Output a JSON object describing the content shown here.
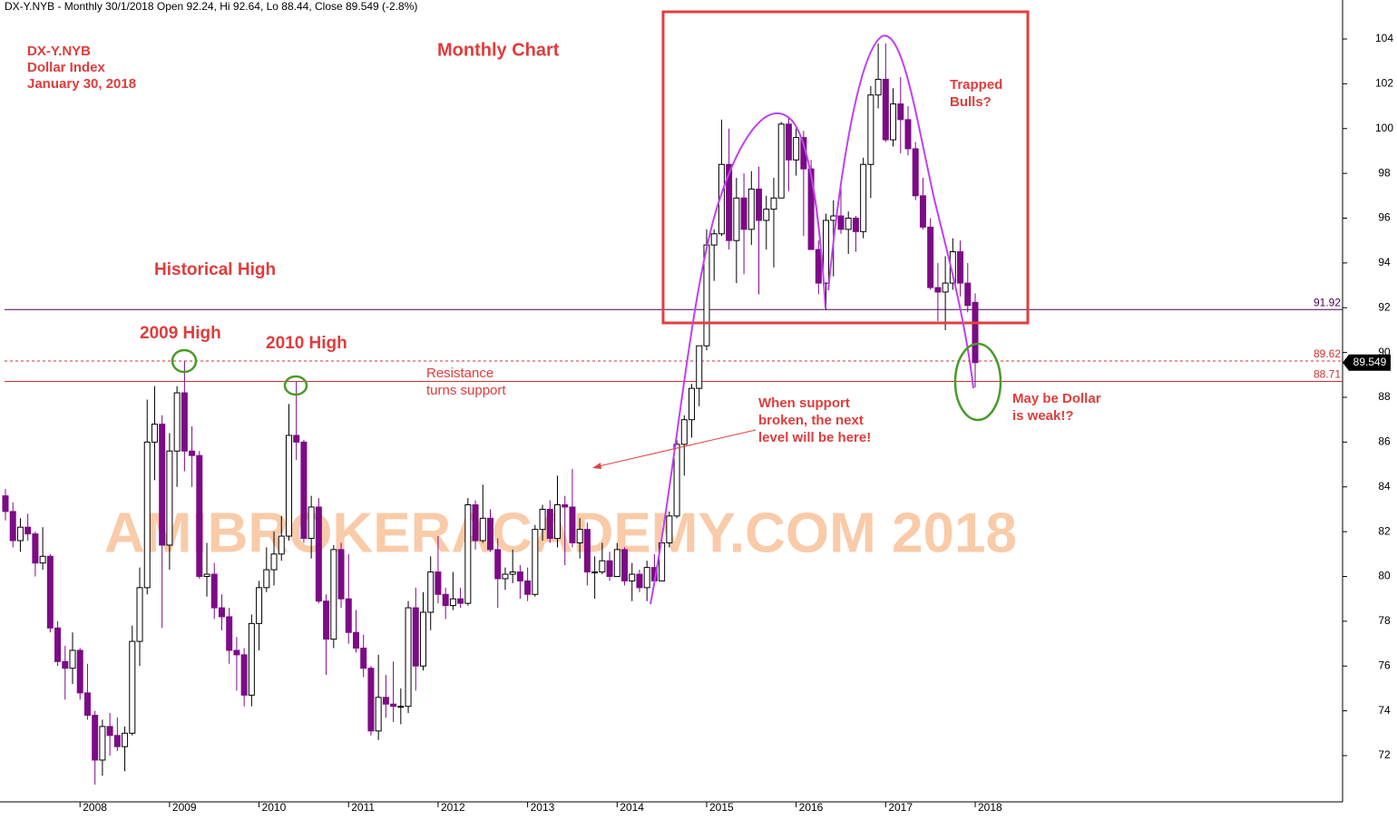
{
  "chart_data": {
    "type": "candlestick",
    "header": "DX-Y.NYB - Monthly 30/1/2018 Open 92.24, Hi 92.64, Lo 88.44, Close 89.549 (-2.8%)",
    "watermark": "AMIBROKERACADEMY.COM  2018",
    "annotations": [
      {
        "lines": [
          "DX-Y.NYB",
          "Dollar Index",
          "January 30, 2018"
        ]
      },
      {
        "lines": [
          "Monthly Chart"
        ]
      },
      {
        "lines": [
          "Historical High"
        ]
      },
      {
        "lines": [
          "2009 High"
        ]
      },
      {
        "lines": [
          "2010 High"
        ]
      },
      {
        "lines": [
          "Resistance",
          "turns support"
        ]
      },
      {
        "lines": [
          "When support",
          "broken, the next",
          "level will be here!"
        ]
      },
      {
        "lines": [
          "Trapped",
          "Bulls?"
        ]
      },
      {
        "lines": [
          "May be Dollar",
          "is weak!?"
        ]
      }
    ],
    "categories": [
      null,
      null,
      null,
      null,
      null,
      null,
      null,
      null,
      null,
      null,
      "2008",
      null,
      null,
      null,
      null,
      null,
      null,
      null,
      null,
      null,
      null,
      null,
      "2009",
      null,
      null,
      null,
      null,
      null,
      null,
      null,
      null,
      null,
      null,
      null,
      "2010",
      null,
      null,
      null,
      null,
      null,
      null,
      null,
      null,
      null,
      null,
      null,
      "2011",
      null,
      null,
      null,
      null,
      null,
      null,
      null,
      null,
      null,
      null,
      null,
      "2012",
      null,
      null,
      null,
      null,
      null,
      null,
      null,
      null,
      null,
      null,
      null,
      "2013",
      null,
      null,
      null,
      null,
      null,
      null,
      null,
      null,
      null,
      null,
      null,
      "2014",
      null,
      null,
      null,
      null,
      null,
      null,
      null,
      null,
      null,
      null,
      null,
      "2015",
      null,
      null,
      null,
      null,
      null,
      null,
      null,
      null,
      null,
      null,
      null,
      "2016",
      null,
      null,
      null,
      null,
      null,
      null,
      null,
      null,
      null,
      null,
      null,
      "2017",
      null,
      null,
      null,
      null,
      null,
      null,
      null,
      null,
      null,
      null,
      null,
      "2018"
    ],
    "open": [
      83.6,
      82.9,
      81.6,
      82.2,
      81.9,
      80.6,
      80.9,
      77.7,
      76.2,
      75.9,
      76.7,
      74.8,
      73.8,
      71.8,
      73.3,
      72.9,
      72.4,
      73.0,
      77.1,
      79.5,
      86.0,
      86.8,
      81.4,
      85.6,
      88.2,
      85.6,
      85.4,
      80.0,
      80.1,
      78.6,
      78.2,
      76.7,
      76.5,
      74.7,
      77.9,
      79.5,
      80.3,
      81.0,
      81.8,
      86.3,
      86.0,
      81.7,
      83.1,
      78.9,
      77.2,
      81.2,
      79.0,
      77.5,
      76.8,
      75.9,
      73.1,
      74.6,
      74.3,
      74.2,
      74.2,
      78.6,
      76.0,
      78.4,
      80.2,
      79.2,
      78.7,
      79.0,
      78.8,
      83.2,
      81.6,
      82.6,
      81.2,
      79.9,
      80.1,
      80.2,
      79.8,
      79.2,
      82.1,
      83.0,
      81.7,
      83.2,
      83.1,
      81.5,
      82.1,
      80.2,
      80.2,
      80.7,
      80.0,
      81.2,
      79.8,
      80.1,
      79.5,
      80.4,
      79.8,
      81.5,
      82.7,
      85.9,
      87.0,
      88.4,
      90.3,
      94.8,
      95.3,
      98.4,
      95.0,
      96.9,
      95.5,
      97.3,
      95.9,
      96.4,
      96.9,
      100.2,
      98.6,
      99.6,
      98.2,
      94.6,
      93.1,
      95.9,
      96.1,
      95.5,
      96.0,
      95.4,
      98.4,
      101.5,
      102.2,
      99.5,
      101.1,
      100.4,
      99.1,
      97.0,
      95.6,
      92.9,
      92.7,
      93.1,
      94.5,
      93.1,
      92.24
    ],
    "high": [
      83.9,
      83.3,
      82.6,
      82.8,
      82.0,
      82.2,
      81.0,
      78.0,
      76.9,
      77.5,
      76.8,
      76.1,
      74.0,
      73.6,
      73.9,
      73.7,
      73.3,
      77.8,
      80.4,
      87.9,
      88.5,
      87.2,
      86.4,
      88.5,
      89.62,
      86.7,
      85.6,
      81.5,
      80.6,
      79.2,
      78.6,
      77.3,
      76.8,
      78.3,
      79.8,
      81.3,
      82.0,
      82.7,
      87.7,
      88.71,
      86.1,
      83.6,
      83.5,
      79.2,
      81.4,
      81.5,
      81.0,
      78.5,
      77.4,
      76.0,
      76.5,
      75.6,
      76.2,
      75.0,
      78.9,
      79.5,
      79.3,
      80.9,
      81.8,
      79.5,
      80.2,
      79.5,
      83.5,
      83.4,
      84.1,
      83.0,
      81.7,
      80.4,
      81.2,
      80.5,
      80.4,
      82.3,
      83.2,
      83.4,
      84.5,
      83.6,
      84.8,
      82.6,
      82.4,
      80.9,
      81.5,
      81.1,
      81.5,
      81.3,
      80.6,
      80.3,
      80.7,
      81.0,
      81.6,
      82.9,
      86.1,
      87.2,
      88.6,
      90.3,
      95.5,
      95.5,
      100.4,
      100.0,
      97.8,
      98.0,
      98.1,
      98.3,
      97.0,
      97.8,
      100.3,
      100.5,
      100.0,
      99.9,
      98.6,
      95.0,
      96.2,
      96.8,
      97.6,
      96.3,
      96.1,
      98.7,
      101.9,
      103.8,
      103.8,
      101.8,
      102.3,
      101.0,
      99.4,
      97.8,
      96.0,
      94.0,
      94.3,
      95.1,
      95.0,
      94.0,
      92.64
    ],
    "low": [
      82.5,
      81.3,
      81.1,
      81.6,
      80.0,
      80.3,
      77.5,
      76.0,
      74.5,
      75.2,
      74.5,
      73.6,
      70.7,
      71.1,
      72.0,
      72.2,
      71.3,
      72.9,
      76.0,
      79.2,
      84.3,
      77.7,
      80.3,
      84.0,
      84.7,
      84.0,
      79.9,
      79.1,
      78.1,
      77.6,
      76.1,
      74.9,
      74.2,
      74.2,
      76.7,
      79.3,
      79.6,
      80.7,
      81.6,
      85.2,
      81.5,
      80.8,
      78.8,
      75.6,
      76.8,
      78.6,
      77.0,
      76.6,
      75.5,
      72.9,
      72.7,
      73.7,
      73.5,
      73.4,
      73.9,
      74.9,
      75.8,
      77.6,
      78.8,
      78.1,
      78.5,
      78.6,
      78.7,
      81.2,
      81.5,
      81.1,
      78.6,
      79.4,
      79.7,
      79.0,
      78.9,
      79.1,
      81.6,
      81.5,
      81.3,
      80.5,
      81.3,
      80.8,
      79.6,
      79.0,
      80.1,
      79.8,
      80.0,
      79.6,
      78.9,
      79.3,
      78.9,
      79.6,
      79.8,
      81.3,
      82.6,
      84.5,
      86.2,
      87.6,
      90.1,
      93.2,
      95.2,
      94.6,
      93.1,
      93.5,
      94.8,
      92.6,
      94.6,
      93.8,
      96.9,
      97.2,
      97.9,
      95.2,
      94.6,
      92.6,
      91.9,
      93.4,
      95.3,
      94.4,
      94.5,
      95.1,
      96.9,
      100.9,
      99.4,
      99.2,
      98.9,
      98.8,
      96.8,
      95.5,
      92.8,
      91.4,
      91.0,
      92.8,
      92.5,
      91.8,
      88.44
    ],
    "close": [
      82.9,
      81.6,
      82.2,
      81.9,
      80.6,
      80.9,
      77.7,
      76.2,
      75.9,
      76.7,
      74.8,
      73.8,
      71.8,
      73.3,
      72.9,
      72.4,
      73.0,
      77.1,
      79.5,
      86.0,
      86.8,
      81.4,
      85.6,
      88.2,
      85.6,
      85.4,
      80.0,
      80.1,
      78.6,
      78.2,
      76.7,
      76.5,
      74.7,
      77.9,
      79.5,
      80.3,
      81.0,
      81.8,
      86.3,
      86.0,
      81.7,
      83.1,
      78.9,
      77.2,
      81.2,
      79.0,
      77.5,
      76.8,
      75.9,
      73.1,
      74.6,
      74.3,
      74.2,
      74.2,
      78.6,
      76.0,
      78.4,
      80.2,
      79.2,
      78.7,
      79.0,
      78.8,
      83.2,
      81.6,
      82.6,
      81.2,
      79.9,
      80.1,
      80.2,
      79.8,
      79.2,
      82.1,
      83.0,
      81.7,
      83.2,
      83.1,
      81.5,
      82.1,
      80.2,
      80.2,
      80.7,
      80.0,
      81.2,
      79.8,
      80.1,
      79.5,
      80.4,
      79.8,
      81.5,
      82.7,
      85.9,
      87.0,
      88.4,
      90.3,
      94.8,
      95.3,
      98.4,
      95.0,
      96.9,
      95.5,
      97.3,
      95.9,
      96.4,
      96.9,
      100.2,
      98.6,
      99.6,
      98.2,
      94.6,
      93.1,
      95.9,
      96.1,
      95.5,
      96.0,
      95.4,
      98.4,
      101.5,
      102.2,
      99.5,
      101.1,
      100.4,
      99.1,
      97.0,
      95.6,
      92.9,
      92.7,
      93.1,
      94.5,
      93.1,
      92.1,
      89.549
    ],
    "up_color": "#ffffff",
    "down_color": "#7d0a87",
    "outline_color": "#000000",
    "hlines": [
      {
        "value": 91.92,
        "color": "#4b0050",
        "dash": false
      },
      {
        "value": 89.62,
        "color": "#d03030",
        "dash": true
      },
      {
        "value": 88.71,
        "color": "#d03030",
        "dash": false
      }
    ],
    "ylim": [
      71,
      105
    ],
    "yticks": [
      72,
      74,
      76,
      78,
      80,
      82,
      84,
      86,
      88,
      90,
      92,
      94,
      96,
      98,
      100,
      102,
      104
    ]
  }
}
